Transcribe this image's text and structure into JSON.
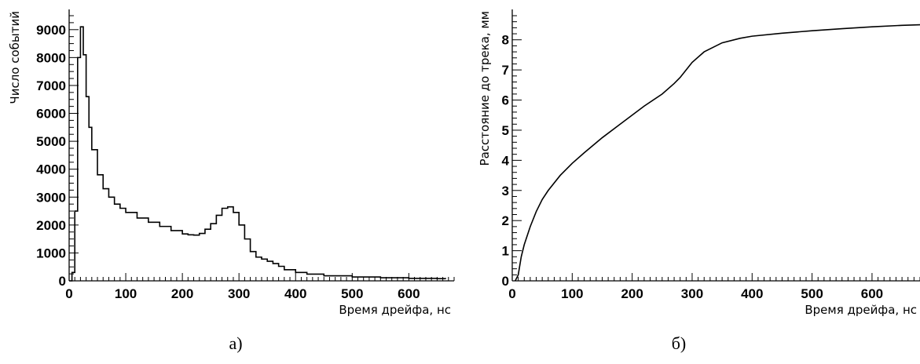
{
  "chart_data": [
    {
      "type": "line",
      "panel_label": "а)",
      "xlabel": "Время дрейфа, нс",
      "ylabel": "Число событий",
      "xlim": [
        0,
        680
      ],
      "ylim": [
        0,
        9500
      ],
      "xticks": [
        0,
        100,
        200,
        300,
        400,
        500,
        600
      ],
      "xtick_labels": [
        "0",
        "100",
        "200",
        "300",
        "400",
        "500",
        "600"
      ],
      "yticks": [
        0,
        1000,
        2000,
        3000,
        4000,
        5000,
        6000,
        7000,
        8000,
        9000
      ],
      "ytick_labels": [
        "0",
        "1000",
        "2000",
        "3000",
        "4000",
        "5000",
        "6000",
        "7000",
        "8000",
        "9000"
      ],
      "grid": false,
      "series": [
        {
          "x": [
            0,
            5,
            10,
            15,
            20,
            25,
            30,
            35,
            40,
            50,
            60,
            70,
            80,
            90,
            100,
            120,
            140,
            160,
            180,
            200,
            210,
            220,
            230,
            240,
            250,
            260,
            270,
            280,
            290,
            300,
            310,
            320,
            330,
            340,
            350,
            360,
            370,
            380,
            400,
            420,
            450,
            500,
            550,
            600,
            650,
            665
          ],
          "y": [
            0,
            300,
            2500,
            8000,
            9100,
            8100,
            6600,
            5500,
            4700,
            3800,
            3300,
            3000,
            2750,
            2600,
            2450,
            2250,
            2100,
            1950,
            1800,
            1680,
            1650,
            1640,
            1700,
            1850,
            2050,
            2350,
            2600,
            2650,
            2450,
            2000,
            1500,
            1050,
            850,
            780,
            700,
            620,
            520,
            400,
            300,
            240,
            180,
            140,
            110,
            90,
            80,
            70
          ]
        }
      ]
    },
    {
      "type": "line",
      "panel_label": "б)",
      "xlabel": "Время дрейфа, нс",
      "ylabel": "Расстояние до трека, мм",
      "xlim": [
        0,
        680
      ],
      "ylim": [
        0,
        8.8
      ],
      "xticks": [
        0,
        100,
        200,
        300,
        400,
        500,
        600
      ],
      "xtick_labels": [
        "0",
        "100",
        "200",
        "300",
        "400",
        "500",
        "600"
      ],
      "yticks": [
        0,
        1,
        2,
        3,
        4,
        5,
        6,
        7,
        8
      ],
      "ytick_labels": [
        "0",
        "1",
        "2",
        "3",
        "4",
        "5",
        "6",
        "7",
        "8"
      ],
      "grid": false,
      "series": [
        {
          "x": [
            5,
            10,
            15,
            20,
            30,
            40,
            50,
            60,
            80,
            100,
            120,
            150,
            180,
            200,
            220,
            250,
            270,
            280,
            290,
            300,
            320,
            350,
            380,
            400,
            450,
            500,
            550,
            600,
            650,
            680
          ],
          "y": [
            0,
            0.2,
            0.8,
            1.2,
            1.8,
            2.3,
            2.7,
            3.0,
            3.5,
            3.9,
            4.25,
            4.75,
            5.2,
            5.5,
            5.8,
            6.2,
            6.55,
            6.75,
            7.0,
            7.25,
            7.6,
            7.9,
            8.05,
            8.12,
            8.22,
            8.3,
            8.37,
            8.43,
            8.48,
            8.5
          ]
        }
      ]
    }
  ]
}
